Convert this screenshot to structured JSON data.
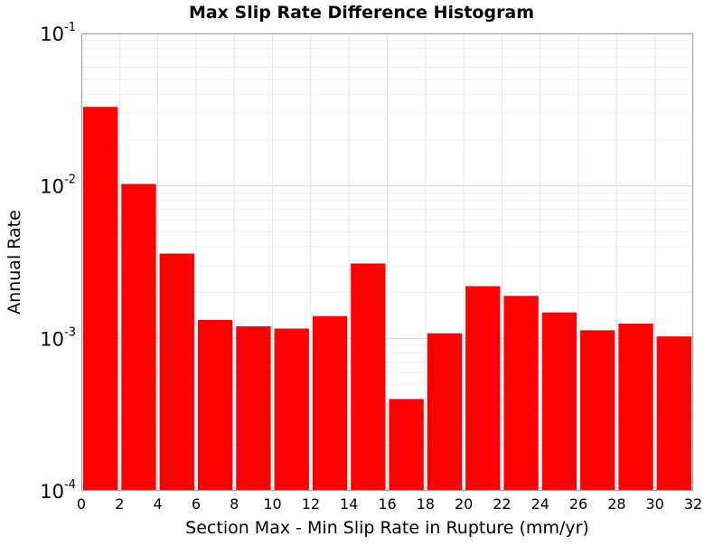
{
  "chart_data": {
    "type": "bar",
    "title": "Max Slip Rate Difference Histogram",
    "xlabel": "Section Max - Min Slip Rate in Rupture (mm/yr)",
    "ylabel": "Annual Rate",
    "y_scale": "log",
    "ylim": [
      0.0001,
      0.1
    ],
    "xlim": [
      0,
      32
    ],
    "x_ticks": [
      0,
      2,
      4,
      6,
      8,
      10,
      12,
      14,
      16,
      18,
      20,
      22,
      24,
      26,
      28,
      30,
      32
    ],
    "x_tick_labels": [
      "0",
      "2",
      "4",
      "6",
      "8",
      "10",
      "12",
      "14",
      "16",
      "18",
      "20",
      "22",
      "24",
      "26",
      "28",
      "30",
      "32"
    ],
    "y_ticks": [
      {
        "value": 0.0001,
        "base": "10",
        "exp": "-4"
      },
      {
        "value": 0.001,
        "base": "10",
        "exp": "-3"
      },
      {
        "value": 0.01,
        "base": "10",
        "exp": "-2"
      },
      {
        "value": 0.1,
        "base": "10",
        "exp": "-1"
      }
    ],
    "grid": true,
    "bar_color": "#ff0000",
    "bin_width": 2,
    "bin_starts": [
      0,
      2,
      4,
      6,
      8,
      10,
      12,
      14,
      16,
      18,
      20,
      22,
      24,
      26,
      28,
      30
    ],
    "values": [
      0.033,
      0.0103,
      0.0036,
      0.00132,
      0.0012,
      0.00116,
      0.0014,
      0.0031,
      0.0004,
      0.00108,
      0.0022,
      0.0019,
      0.00148,
      0.00113,
      0.00125,
      0.00103
    ]
  }
}
